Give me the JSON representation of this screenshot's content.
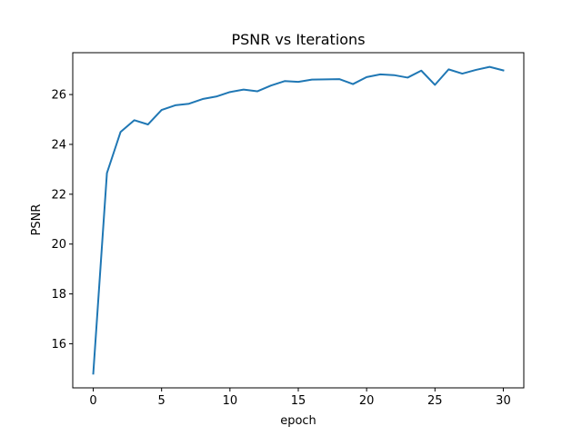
{
  "chart_data": {
    "type": "line",
    "title": "PSNR vs Iterations",
    "xlabel": "epoch",
    "ylabel": "PSNR",
    "xlim": [
      -1.5,
      31.5
    ],
    "ylim": [
      14.23,
      27.68
    ],
    "grid": false,
    "legend": "none",
    "x_ticks": [
      0,
      5,
      10,
      15,
      20,
      25,
      30
    ],
    "y_ticks": [
      16,
      18,
      20,
      22,
      24,
      26
    ],
    "series": [
      {
        "color": "#1f77b4",
        "x": [
          0,
          1,
          2,
          3,
          4,
          5,
          6,
          7,
          8,
          9,
          10,
          11,
          12,
          13,
          14,
          15,
          16,
          17,
          18,
          19,
          20,
          21,
          22,
          23,
          24,
          25,
          26,
          27,
          28,
          29,
          30
        ],
        "y": [
          14.8,
          22.85,
          24.5,
          24.97,
          24.8,
          25.38,
          25.57,
          25.63,
          25.82,
          25.92,
          26.1,
          26.2,
          26.13,
          26.36,
          26.54,
          26.51,
          26.6,
          26.61,
          26.62,
          26.42,
          26.7,
          26.81,
          26.78,
          26.68,
          26.96,
          26.39,
          27.01,
          26.84,
          26.99,
          27.11,
          26.97
        ]
      }
    ]
  }
}
